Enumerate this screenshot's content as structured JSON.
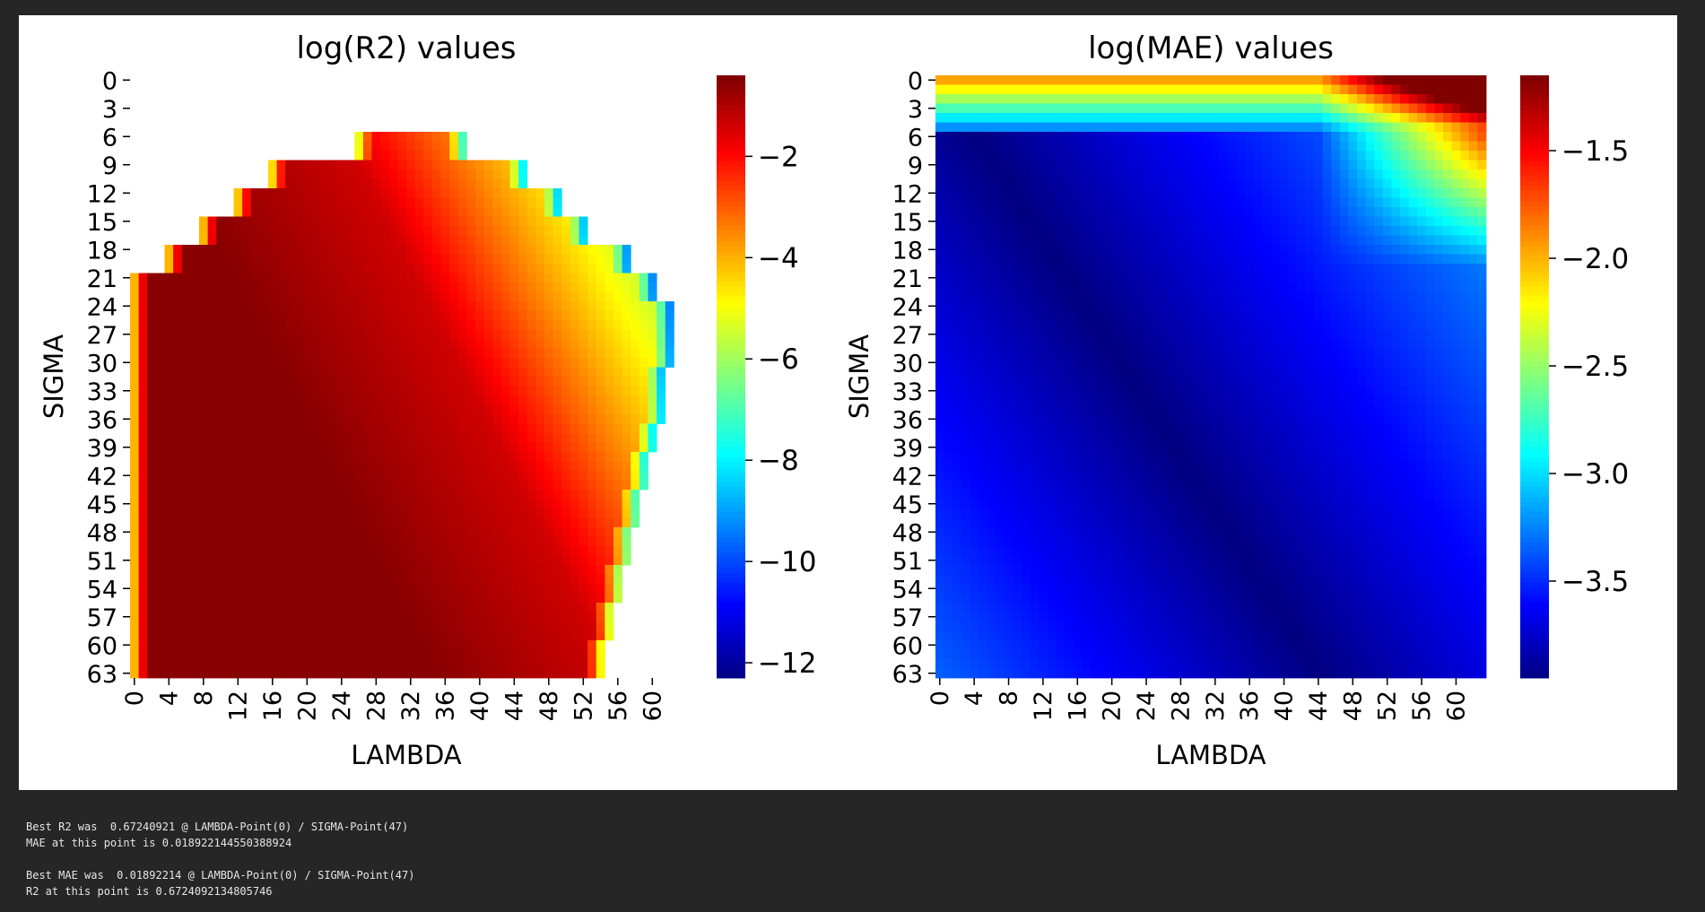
{
  "chart_data": [
    {
      "type": "heatmap",
      "title": "log(R2) values",
      "xlabel": "LAMBDA",
      "ylabel": "SIGMA",
      "x_range": [
        0,
        63
      ],
      "y_range": [
        0,
        63
      ],
      "x_ticks": [
        0,
        4,
        8,
        12,
        16,
        20,
        24,
        28,
        32,
        36,
        40,
        44,
        48,
        52,
        56,
        60
      ],
      "y_ticks": [
        0,
        3,
        6,
        9,
        12,
        15,
        18,
        21,
        24,
        27,
        30,
        33,
        36,
        39,
        42,
        45,
        48,
        51,
        54,
        57,
        60,
        63
      ],
      "colormap": "jet",
      "color_range": [
        -12.3,
        -0.4
      ],
      "colorbar_ticks": [
        "−2",
        "−4",
        "−6",
        "−8",
        "−10",
        "−12"
      ],
      "colorbar_tick_values": [
        -2,
        -4,
        -6,
        -8,
        -10,
        -12
      ],
      "grid": false
    },
    {
      "type": "heatmap",
      "title": "log(MAE) values",
      "xlabel": "LAMBDA",
      "ylabel": "SIGMA",
      "x_range": [
        0,
        63
      ],
      "y_range": [
        0,
        63
      ],
      "x_ticks": [
        0,
        4,
        8,
        12,
        16,
        20,
        24,
        28,
        32,
        36,
        40,
        44,
        48,
        52,
        56,
        60
      ],
      "y_ticks": [
        0,
        3,
        6,
        9,
        12,
        15,
        18,
        21,
        24,
        27,
        30,
        33,
        36,
        39,
        42,
        45,
        48,
        51,
        54,
        57,
        60,
        63
      ],
      "colormap": "jet",
      "color_range": [
        -3.95,
        -1.15
      ],
      "colorbar_ticks": [
        "−1.5",
        "−2.0",
        "−2.5",
        "−3.0",
        "−3.5"
      ],
      "colorbar_tick_values": [
        -1.5,
        -2.0,
        -2.5,
        -3.0,
        -3.5
      ],
      "grid": false
    }
  ],
  "output_lines": [
    "Best R2 was  0.67240921 @ LAMBDA-Point(0) / SIGMA-Point(47)",
    "MAE at this point is 0.018922144550388924",
    "",
    "Best MAE was  0.01892214 @ LAMBDA-Point(0) / SIGMA-Point(47)",
    "R2 at this point is 0.6724092134805746"
  ],
  "colors": {
    "page_background": "#262626",
    "figure_background": "#ffffff",
    "output_text": "#e6e6e6"
  }
}
